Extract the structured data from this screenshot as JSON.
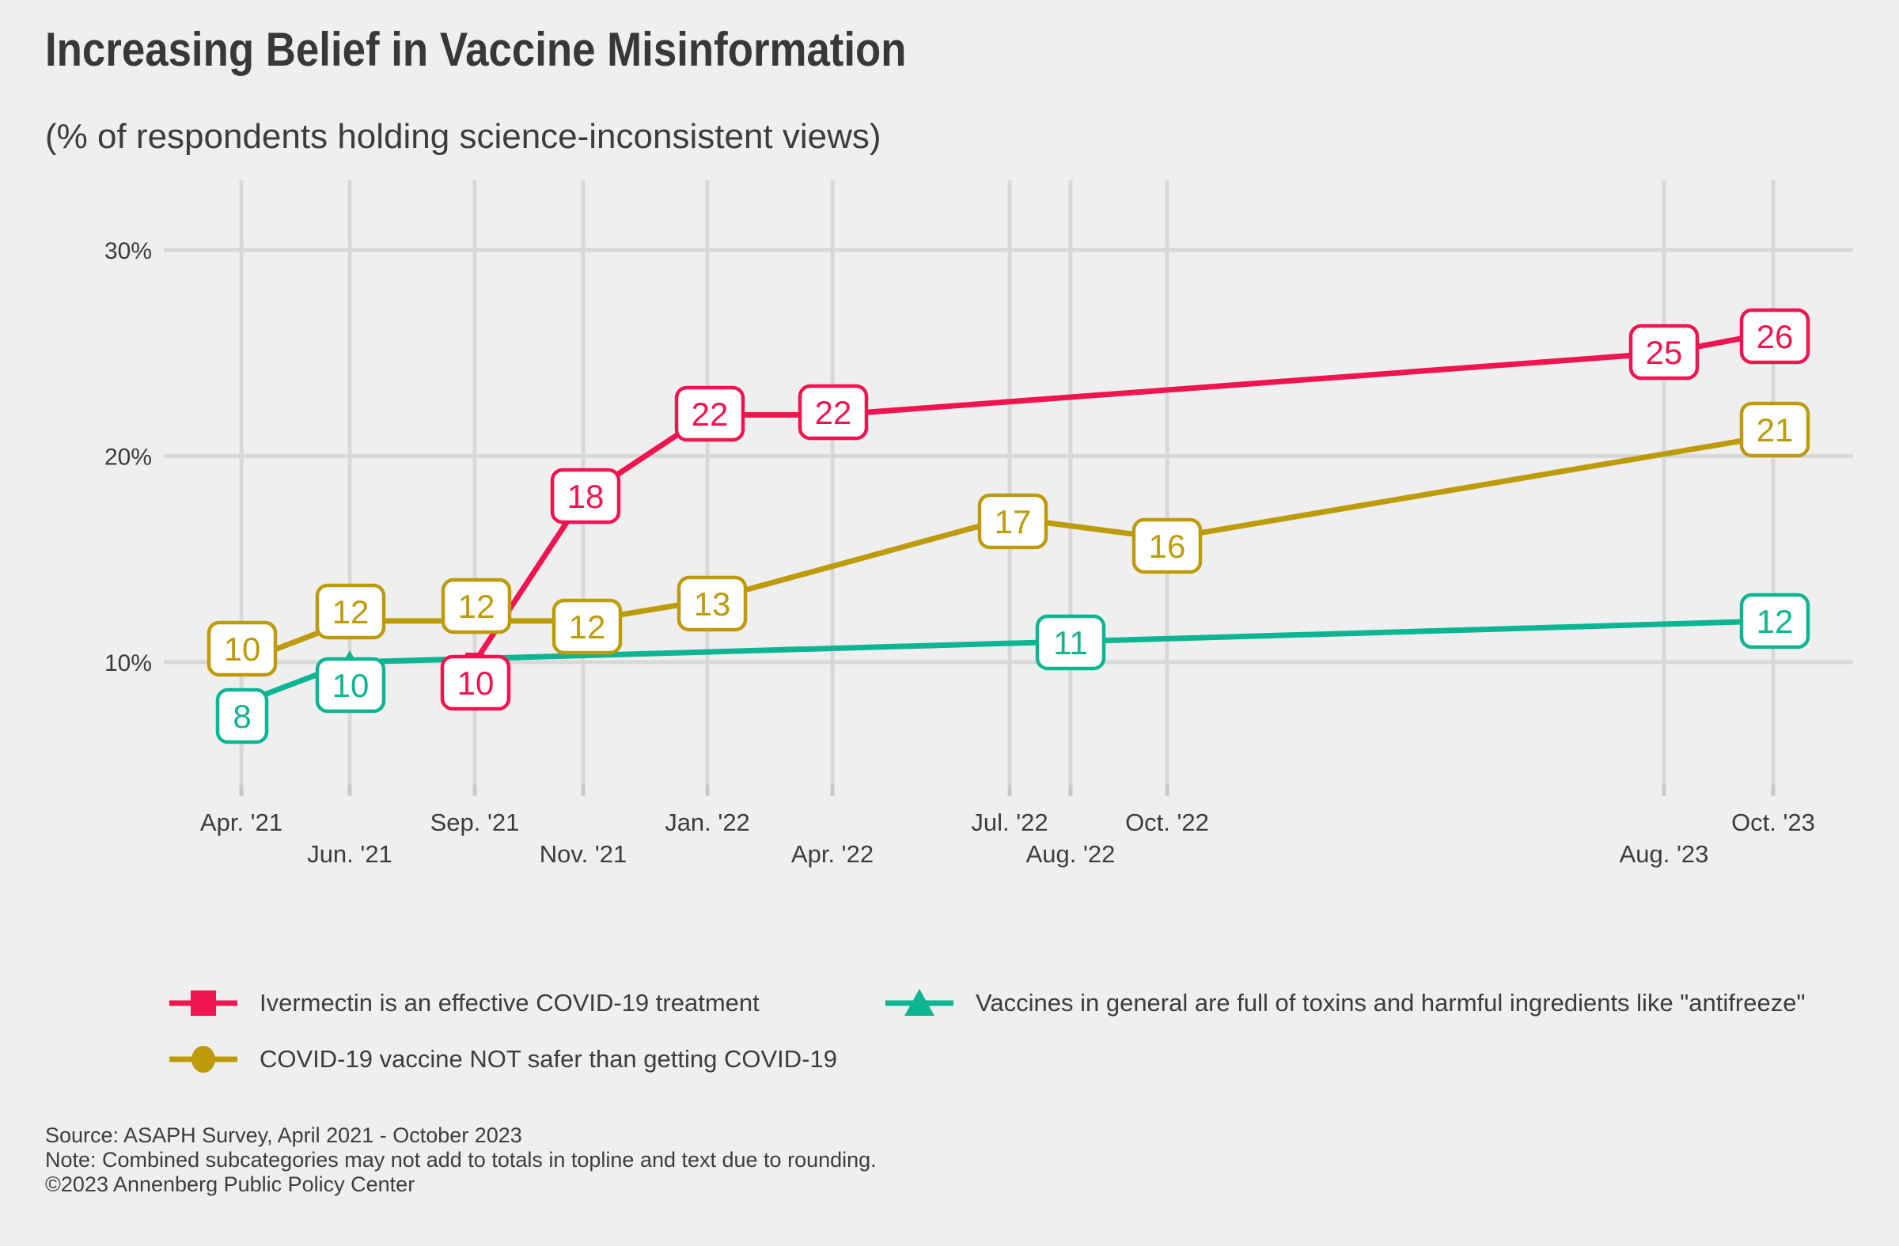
{
  "header": {
    "title": "Increasing Belief in Vaccine Misinformation",
    "subtitle": "(% of respondents holding science-inconsistent views)"
  },
  "chart_data": {
    "type": "line",
    "title": "Increasing Belief in Vaccine Misinformation",
    "subtitle": "(% of respondents holding science-inconsistent views)",
    "unit": "percent of respondents",
    "grid": true,
    "legend_position": "bottom",
    "y_axis": {
      "ticks": [
        {
          "value": 30,
          "label": "30%"
        },
        {
          "value": 20,
          "label": "20%"
        },
        {
          "value": 10,
          "label": "10%"
        }
      ]
    },
    "x_axis": {
      "ticks": [
        {
          "label": "Apr. '21",
          "row": 1
        },
        {
          "label": "Jun. '21",
          "row": 2
        },
        {
          "label": "Sep. '21",
          "row": 1
        },
        {
          "label": "Nov. '21",
          "row": 2
        },
        {
          "label": "Jan. '22",
          "row": 1
        },
        {
          "label": "Apr. '22",
          "row": 2
        },
        {
          "label": "Jul. '22",
          "row": 1
        },
        {
          "label": "Aug. '22",
          "row": 2
        },
        {
          "label": "Oct. '22",
          "row": 1
        },
        {
          "label": "Aug. '23",
          "row": 2
        },
        {
          "label": "Oct. '23",
          "row": 1
        }
      ]
    },
    "series": [
      {
        "id": "not-safer",
        "name": "COVID-19 vaccine NOT safer than getting COVID-19",
        "color": "#be9b0b",
        "marker": "circle",
        "points": [
          {
            "date": "Apr. '21",
            "value": 10
          },
          {
            "date": "Jun. '21",
            "value": 12
          },
          {
            "date": "Sep. '21",
            "value": 12
          },
          {
            "date": "Nov. '21",
            "value": 12
          },
          {
            "date": "Jan. '22",
            "value": 13
          },
          {
            "date": "Jul. '22",
            "value": 17
          },
          {
            "date": "Oct. '22",
            "value": 16
          },
          {
            "date": "Oct. '23",
            "value": 21
          }
        ]
      },
      {
        "id": "toxins",
        "name": "Vaccines in general are full of toxins and harmful ingredients like \"antifreeze\"",
        "color": "#0db592",
        "marker": "triangle",
        "points": [
          {
            "date": "Apr. '21",
            "value": 8
          },
          {
            "date": "Jun. '21",
            "value": 10
          },
          {
            "date": "Aug. '22",
            "value": 11
          },
          {
            "date": "Oct. '23",
            "value": 12
          }
        ]
      },
      {
        "id": "ivermectin",
        "name": "Ivermectin is an effective COVID-19 treatment",
        "color": "#f0144f",
        "marker": "square",
        "points": [
          {
            "date": "Sep. '21",
            "value": 10
          },
          {
            "date": "Nov. '21",
            "value": 18
          },
          {
            "date": "Jan. '22",
            "value": 22
          },
          {
            "date": "Apr. '22",
            "value": 22
          },
          {
            "date": "Aug. '23",
            "value": 25
          },
          {
            "date": "Oct. '23",
            "value": 26
          }
        ]
      }
    ]
  },
  "legend": {
    "items": [
      {
        "id": "ivermectin",
        "label": "Ivermectin is an effective COVID-19 treatment",
        "color": "#f0144f",
        "marker": "square"
      },
      {
        "id": "toxins",
        "label": "Vaccines in general are full of toxins and harmful ingredients like \"antifreeze\"",
        "color": "#0db592",
        "marker": "triangle"
      },
      {
        "id": "not-safer",
        "label": "COVID-19 vaccine NOT safer than getting COVID-19",
        "color": "#be9b0b",
        "marker": "circle"
      }
    ]
  },
  "footer": {
    "source": "Source: ASAPH Survey, April 2021 - October 2023",
    "note": "Note: Combined subcategories may not add to totals in topline and text due to rounding.",
    "copyright": "©2023 Annenberg Public Policy Center"
  },
  "colors": {
    "background": "#efefef",
    "gridline": "#d8d8d8",
    "tick": "#c9c9c9",
    "axis_text": "#3c3c3c",
    "label_box_fill": "#ffffff",
    "ivermectin": "#f0144f",
    "not_safer": "#be9b0b",
    "toxins": "#0db592"
  }
}
